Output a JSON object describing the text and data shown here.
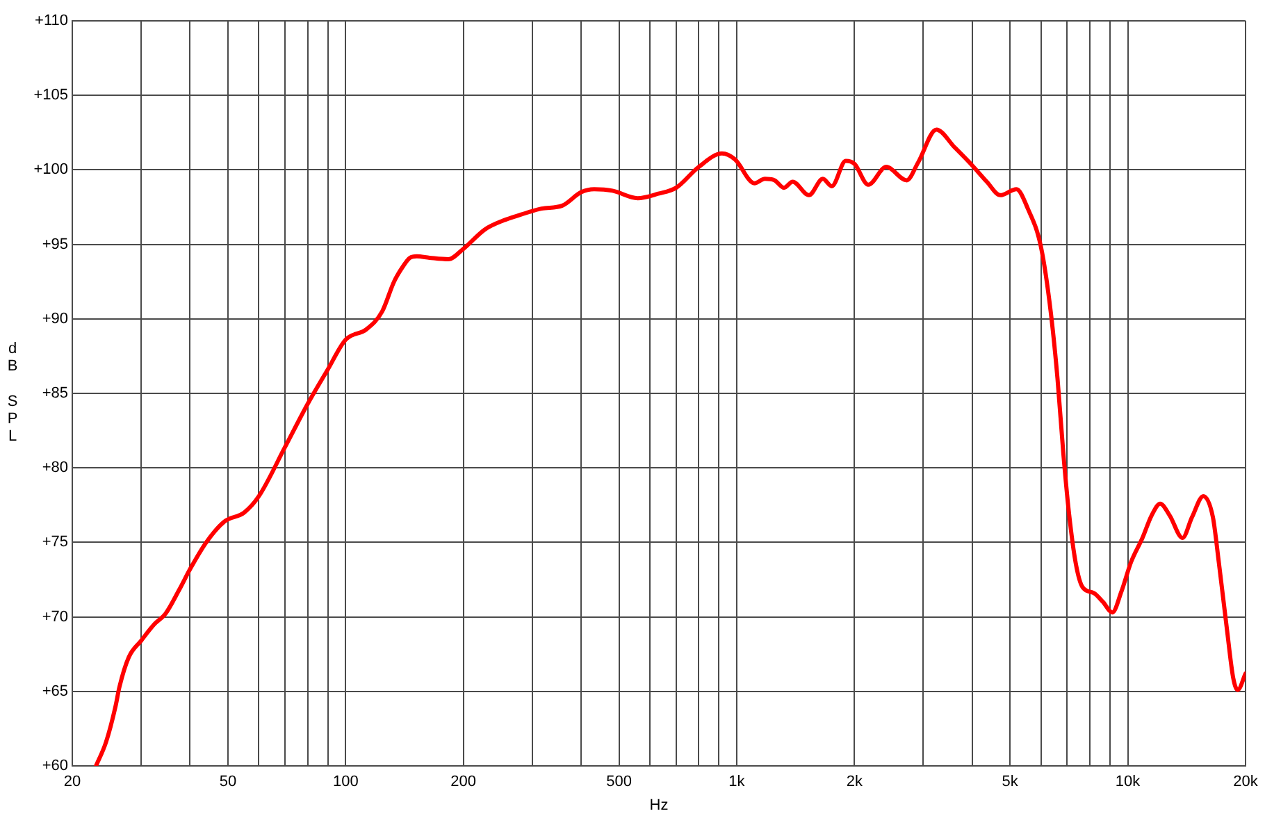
{
  "chart_data": {
    "type": "line",
    "xlabel": "Hz",
    "ylabel": "dB SPL",
    "log": "x",
    "grid": true,
    "xlim": [
      20,
      20000
    ],
    "ylim": [
      60,
      110
    ],
    "xticks": [
      20,
      {
        "value": 30,
        "label": null
      },
      {
        "value": 40,
        "label": null
      },
      50,
      {
        "value": 60,
        "label": null
      },
      {
        "value": 70,
        "label": null
      },
      {
        "value": 80,
        "label": null
      },
      {
        "value": 90,
        "label": null
      },
      100,
      200,
      {
        "value": 300,
        "label": null
      },
      {
        "value": 400,
        "label": null
      },
      500,
      {
        "value": 600,
        "label": null
      },
      {
        "value": 700,
        "label": null
      },
      {
        "value": 800,
        "label": null
      },
      {
        "value": 900,
        "label": null
      },
      {
        "value": 1000,
        "label": "1k"
      },
      {
        "value": 2000,
        "label": "2k"
      },
      {
        "value": 3000,
        "label": null
      },
      {
        "value": 4000,
        "label": null
      },
      {
        "value": 5000,
        "label": "5k"
      },
      {
        "value": 6000,
        "label": null
      },
      {
        "value": 7000,
        "label": null
      },
      {
        "value": 8000,
        "label": null
      },
      {
        "value": 9000,
        "label": null
      },
      {
        "value": 10000,
        "label": "10k"
      },
      {
        "value": 20000,
        "label": "20k"
      }
    ],
    "yticks": [
      {
        "value": 60,
        "label": "+60"
      },
      {
        "value": 65,
        "label": "+65"
      },
      {
        "value": 70,
        "label": "+70"
      },
      {
        "value": 75,
        "label": "+75"
      },
      {
        "value": 80,
        "label": "+80"
      },
      {
        "value": 85,
        "label": "+85"
      },
      {
        "value": 90,
        "label": "+90"
      },
      {
        "value": 95,
        "label": "+95"
      },
      {
        "value": 100,
        "label": "+100"
      },
      {
        "value": 105,
        "label": "+105"
      },
      {
        "value": 110,
        "label": "+110"
      }
    ],
    "x": [
      23,
      24.4,
      25.8,
      26.4,
      27.9,
      30,
      32.4,
      34.6,
      37.5,
      40,
      44,
      49,
      55,
      60,
      70,
      80,
      90,
      100,
      113,
      124,
      133,
      140,
      146,
      152,
      164,
      183,
      200,
      227,
      253,
      281,
      317,
      358,
      400,
      432,
      481,
      558,
      630,
      700,
      800,
      917,
      990,
      1110,
      1180,
      1250,
      1320,
      1390,
      1530,
      1660,
      1750,
      1900,
      2000,
      2170,
      2410,
      2720,
      2910,
      3240,
      3610,
      4000,
      4360,
      4720,
      5190,
      5550,
      6000,
      6350,
      6610,
      6840,
      7070,
      7360,
      7660,
      8190,
      8640,
      9130,
      9630,
      10200,
      10900,
      11500,
      12100,
      12800,
      13800,
      14600,
      15600,
      16500,
      17100,
      17900,
      18600,
      19100,
      20000
    ],
    "series": [
      {
        "color": "#ff0000",
        "values": [
          60.0,
          61.6,
          64.0,
          65.3,
          67.3,
          68.4,
          69.5,
          70.2,
          71.8,
          73.2,
          75.0,
          76.4,
          77.0,
          78.1,
          81.4,
          84.3,
          86.6,
          88.6,
          89.3,
          90.5,
          92.5,
          93.5,
          94.1,
          94.2,
          94.1,
          94.0,
          94.7,
          96.0,
          96.6,
          97.0,
          97.4,
          97.6,
          98.5,
          98.7,
          98.6,
          98.1,
          98.4,
          98.8,
          100.2,
          101.1,
          100.7,
          99.1,
          99.4,
          99.3,
          98.8,
          99.2,
          98.3,
          99.4,
          98.9,
          100.6,
          100.4,
          99.0,
          100.2,
          99.3,
          100.5,
          102.7,
          101.5,
          100.3,
          99.2,
          98.3,
          98.7,
          97.4,
          94.8,
          90.5,
          86.0,
          81.0,
          77.0,
          73.6,
          72.0,
          71.6,
          71.0,
          70.3,
          71.7,
          73.7,
          75.3,
          76.8,
          77.6,
          76.8,
          75.3,
          76.7,
          78.1,
          76.7,
          73.6,
          69.3,
          65.9,
          65.1,
          66.2
        ]
      }
    ]
  }
}
